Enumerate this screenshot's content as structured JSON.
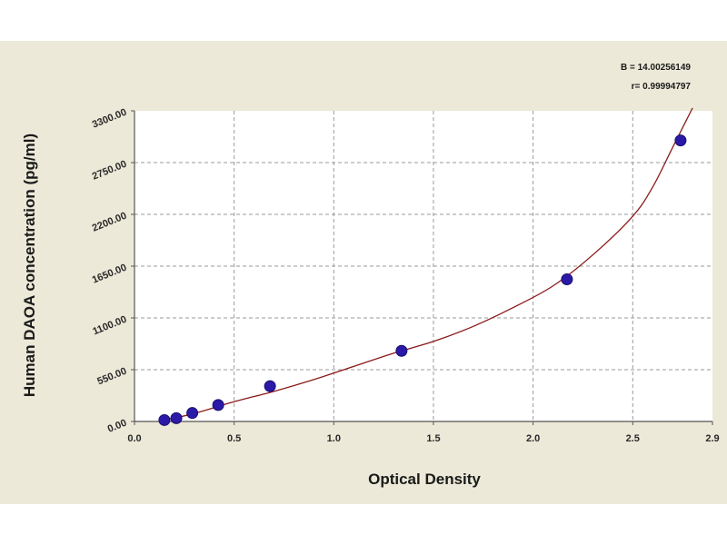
{
  "chart_data": {
    "type": "scatter",
    "xlabel": "Optical Density",
    "ylabel": "Human  DAOA concentration (pg/ml)",
    "xlim": [
      0.0,
      2.9
    ],
    "ylim": [
      0,
      3300
    ],
    "x_ticks": [
      "0.0",
      "0.5",
      "1.0",
      "1.5",
      "2.0",
      "2.5",
      "2.9"
    ],
    "y_ticks": [
      "0.00",
      "550.00",
      "1100.00",
      "1650.00",
      "2200.00",
      "2750.00",
      "3300.00"
    ],
    "grid": true,
    "points": {
      "x": [
        0.15,
        0.21,
        0.29,
        0.42,
        0.68,
        1.34,
        2.17,
        2.74
      ],
      "y": [
        15,
        35,
        90,
        175,
        375,
        750,
        1510,
        2985
      ]
    },
    "fit_curve": {
      "x": [
        0.15,
        0.3,
        0.5,
        0.7,
        0.9,
        1.1,
        1.3,
        1.5,
        1.7,
        1.9,
        2.1,
        2.3,
        2.5,
        2.6,
        2.7,
        2.8
      ],
      "y": [
        15,
        85,
        210,
        320,
        445,
        585,
        725,
        850,
        1010,
        1210,
        1440,
        1770,
        2180,
        2490,
        2910,
        3330
      ]
    },
    "annotations": [
      "B = 14.00256149",
      "r= 0.99994797"
    ],
    "colors": {
      "points": "#2b1aa8",
      "curve": "#8b1a1a",
      "background": "#ece9d8",
      "plot_area": "#ffffff",
      "grid": "#9a9a9a"
    }
  }
}
